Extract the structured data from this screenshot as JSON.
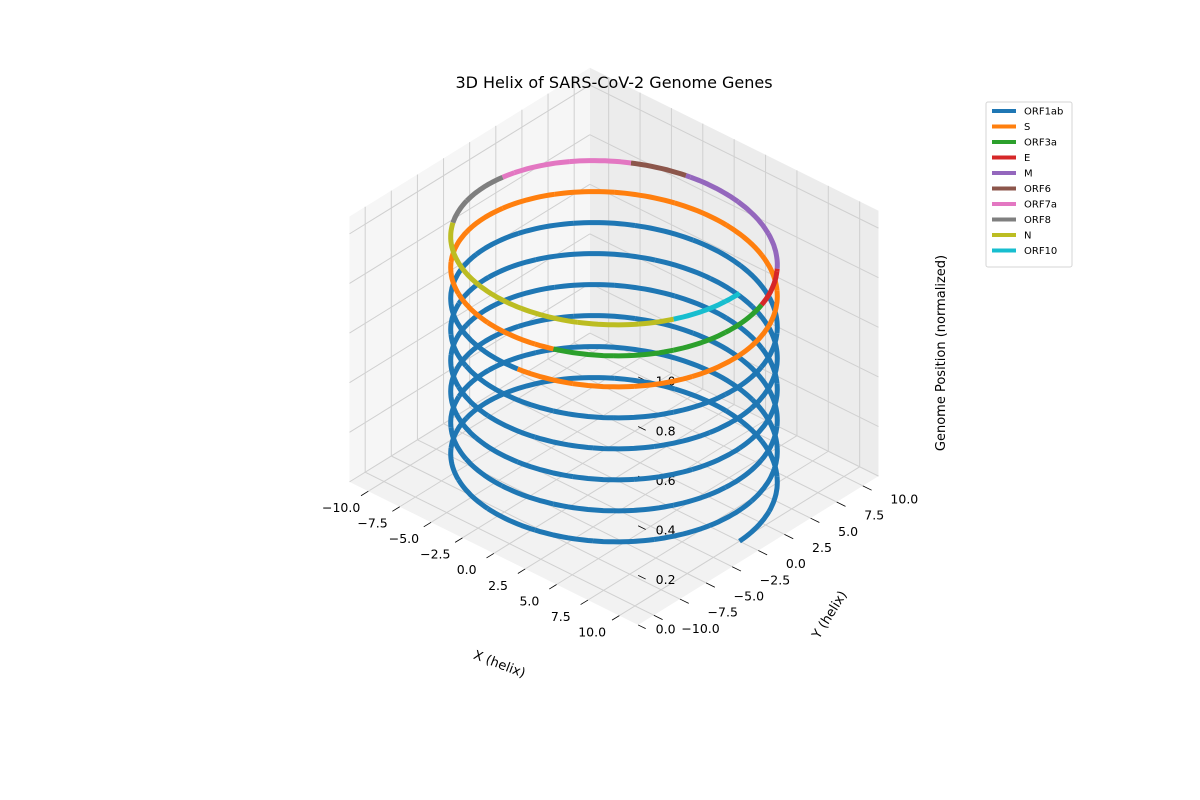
{
  "chart_data": {
    "type": "line",
    "projection": "3d",
    "title": "3D Helix of SARS-CoV-2 Genome Genes",
    "xlabel": "X (helix)",
    "ylabel": "Y (helix)",
    "zlabel": "Genome Position (normalized)",
    "xlim": [
      -10,
      10
    ],
    "ylim": [
      -10,
      10
    ],
    "zlim": [
      0,
      1
    ],
    "xticks": [
      "−10.0",
      "−7.5",
      "−5.0",
      "−2.5",
      "0.0",
      "2.5",
      "5.0",
      "7.5",
      "10.0"
    ],
    "yticks": [
      "−10.0",
      "−7.5",
      "−5.0",
      "−2.5",
      "0.0",
      "2.5",
      "5.0",
      "7.5",
      "10.0"
    ],
    "zticks": [
      "0.0",
      "0.2",
      "0.4",
      "0.6",
      "0.8",
      "1.0"
    ],
    "helix": {
      "radius": 10,
      "turns": 8
    },
    "grid": true,
    "legend_position": "outside-top-right",
    "series": [
      {
        "name": "ORF1ab",
        "color": "#1f77b4",
        "z_start": 0.0,
        "z_end": 0.72
      },
      {
        "name": "S",
        "color": "#ff7f0e",
        "z_start": 0.72,
        "z_end": 0.85
      },
      {
        "name": "ORF3a",
        "color": "#2ca02c",
        "z_start": 0.85,
        "z_end": 0.88
      },
      {
        "name": "E",
        "color": "#d62728",
        "z_start": 0.88,
        "z_end": 0.888
      },
      {
        "name": "M",
        "color": "#9467bd",
        "z_start": 0.888,
        "z_end": 0.911
      },
      {
        "name": "ORF6",
        "color": "#8c564b",
        "z_start": 0.911,
        "z_end": 0.918
      },
      {
        "name": "ORF7a",
        "color": "#e377c2",
        "z_start": 0.918,
        "z_end": 0.935
      },
      {
        "name": "ORF8",
        "color": "#7f7f7f",
        "z_start": 0.935,
        "z_end": 0.948
      },
      {
        "name": "N",
        "color": "#bcbd22",
        "z_start": 0.948,
        "z_end": 0.99
      },
      {
        "name": "ORF10",
        "color": "#17becf",
        "z_start": 0.99,
        "z_end": 1.0
      }
    ]
  }
}
